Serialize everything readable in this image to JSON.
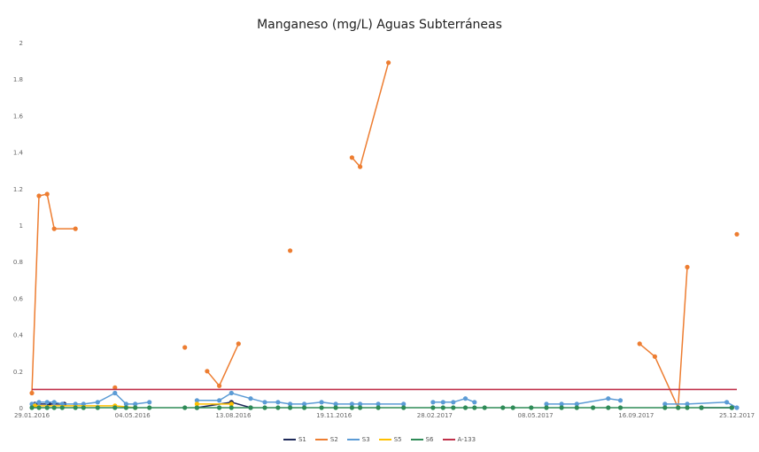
{
  "chart_data": {
    "type": "line",
    "title": "Manganeso (mg/L) Aguas Subterráneas",
    "ylim": [
      0,
      2
    ],
    "yticks": [
      "0",
      "0.2",
      "0.4",
      "0.6",
      "0.8",
      "1",
      "1.2",
      "1.4",
      "1.6",
      "1.8",
      "2"
    ],
    "xlim": [
      "2016-01-29",
      "2017-12-25"
    ],
    "xtick_labels": [
      "29.01.2016",
      "04.05.2016",
      "13.08.2016",
      "19.11.2016",
      "28.02.2017",
      "08.05.2017",
      "16.09.2017",
      "25.12.2017"
    ],
    "grid": false,
    "legend_position": "bottom",
    "series": [
      {
        "name": "S1",
        "color": "#1f2a5a",
        "segments": [
          [
            [
              "2016-02-01",
              0.02
            ],
            [
              "2016-02-15",
              0.02
            ],
            [
              "2016-03-01",
              0.02
            ]
          ],
          [
            [
              "2016-07-10",
              0.0
            ],
            [
              "2016-08-13",
              0.03
            ],
            [
              "2016-09-01",
              0.0
            ]
          ],
          [
            [
              "2017-11-20",
              0.0
            ],
            [
              "2017-12-20",
              0.0
            ]
          ]
        ]
      },
      {
        "name": "S2",
        "color": "#ed7d31",
        "segments": [
          [
            [
              "2016-01-29",
              0.08
            ],
            [
              "2016-02-05",
              1.16
            ],
            [
              "2016-02-13",
              1.17
            ],
            [
              "2016-02-20",
              0.98
            ],
            [
              "2016-03-12",
              0.98
            ]
          ],
          [
            [
              "2016-04-20",
              0.11
            ]
          ],
          [
            [
              "2016-06-28",
              0.33
            ]
          ],
          [
            [
              "2016-07-20",
              0.2
            ],
            [
              "2016-08-01",
              0.12
            ],
            [
              "2016-08-20",
              0.35
            ]
          ],
          [
            [
              "2016-10-10",
              0.86
            ]
          ],
          [
            [
              "2016-12-10",
              1.37
            ],
            [
              "2016-12-18",
              1.32
            ],
            [
              "2017-01-15",
              1.89
            ]
          ],
          [
            [
              "2017-09-20",
              0.35
            ],
            [
              "2017-10-05",
              0.28
            ],
            [
              "2017-10-28",
              0.0
            ],
            [
              "2017-11-06",
              0.77
            ]
          ],
          [
            [
              "2017-12-25",
              0.95
            ]
          ]
        ]
      },
      {
        "name": "S3",
        "color": "#5b9bd5",
        "segments": [
          [
            [
              "2016-01-29",
              0.02
            ],
            [
              "2016-02-05",
              0.03
            ],
            [
              "2016-02-13",
              0.03
            ],
            [
              "2016-02-20",
              0.03
            ],
            [
              "2016-02-28",
              0.02
            ],
            [
              "2016-03-12",
              0.02
            ],
            [
              "2016-03-20",
              0.02
            ],
            [
              "2016-04-03",
              0.03
            ],
            [
              "2016-04-20",
              0.08
            ],
            [
              "2016-05-01",
              0.02
            ],
            [
              "2016-05-10",
              0.02
            ],
            [
              "2016-05-24",
              0.03
            ]
          ],
          [
            [
              "2016-07-10",
              0.04
            ],
            [
              "2016-08-01",
              0.04
            ],
            [
              "2016-08-13",
              0.08
            ],
            [
              "2016-09-01",
              0.05
            ],
            [
              "2016-09-15",
              0.03
            ],
            [
              "2016-09-28",
              0.03
            ],
            [
              "2016-10-10",
              0.02
            ],
            [
              "2016-10-24",
              0.02
            ],
            [
              "2016-11-10",
              0.03
            ],
            [
              "2016-11-24",
              0.02
            ],
            [
              "2016-12-10",
              0.02
            ],
            [
              "2016-12-18",
              0.02
            ],
            [
              "2017-01-05",
              0.02
            ],
            [
              "2017-01-30",
              0.02
            ]
          ],
          [
            [
              "2017-02-28",
              0.03
            ],
            [
              "2017-03-10",
              0.03
            ],
            [
              "2017-03-20",
              0.03
            ],
            [
              "2017-04-01",
              0.05
            ],
            [
              "2017-04-10",
              0.03
            ]
          ],
          [
            [
              "2017-06-20",
              0.02
            ],
            [
              "2017-07-05",
              0.02
            ],
            [
              "2017-07-20",
              0.02
            ],
            [
              "2017-08-20",
              0.05
            ],
            [
              "2017-09-01",
              0.04
            ]
          ],
          [
            [
              "2017-10-15",
              0.02
            ],
            [
              "2017-11-06",
              0.02
            ],
            [
              "2017-12-15",
              0.03
            ],
            [
              "2017-12-25",
              0.0
            ]
          ]
        ]
      },
      {
        "name": "S5",
        "color": "#ffc000",
        "segments": [
          [
            [
              "2016-02-01",
              0.01
            ],
            [
              "2016-04-20",
              0.01
            ],
            [
              "2016-05-10",
              0.0
            ]
          ],
          [
            [
              "2016-07-10",
              0.02
            ],
            [
              "2016-08-13",
              0.02
            ]
          ]
        ]
      },
      {
        "name": "S6",
        "color": "#2e8b57",
        "segments": [
          [
            [
              "2016-01-29",
              0.0
            ],
            [
              "2016-02-05",
              0.0
            ],
            [
              "2016-02-13",
              0.0
            ],
            [
              "2016-02-20",
              0.0
            ],
            [
              "2016-02-28",
              0.0
            ],
            [
              "2016-03-12",
              0.0
            ],
            [
              "2016-03-20",
              0.0
            ],
            [
              "2016-04-03",
              0.0
            ],
            [
              "2016-04-20",
              0.0
            ],
            [
              "2016-05-01",
              0.0
            ],
            [
              "2016-05-10",
              0.0
            ],
            [
              "2016-05-24",
              0.0
            ],
            [
              "2016-06-28",
              0.0
            ],
            [
              "2016-07-10",
              0.0
            ],
            [
              "2016-08-01",
              0.0
            ],
            [
              "2016-08-13",
              0.0
            ],
            [
              "2016-09-01",
              0.0
            ],
            [
              "2016-09-15",
              0.0
            ],
            [
              "2016-09-28",
              0.0
            ],
            [
              "2016-10-10",
              0.0
            ],
            [
              "2016-10-24",
              0.0
            ],
            [
              "2016-11-10",
              0.0
            ],
            [
              "2016-11-24",
              0.0
            ],
            [
              "2016-12-10",
              0.0
            ],
            [
              "2016-12-18",
              0.0
            ],
            [
              "2017-01-05",
              0.0
            ],
            [
              "2017-01-30",
              0.0
            ],
            [
              "2017-02-28",
              0.0
            ],
            [
              "2017-03-10",
              0.0
            ],
            [
              "2017-03-20",
              0.0
            ],
            [
              "2017-04-01",
              0.0
            ],
            [
              "2017-04-10",
              0.0
            ],
            [
              "2017-04-20",
              0.0
            ],
            [
              "2017-05-08",
              0.0
            ],
            [
              "2017-05-18",
              0.0
            ],
            [
              "2017-06-05",
              0.0
            ],
            [
              "2017-06-20",
              0.0
            ],
            [
              "2017-07-05",
              0.0
            ],
            [
              "2017-07-20",
              0.0
            ],
            [
              "2017-08-05",
              0.0
            ],
            [
              "2017-08-20",
              0.0
            ],
            [
              "2017-09-01",
              0.0
            ],
            [
              "2017-10-15",
              0.0
            ],
            [
              "2017-10-28",
              0.0
            ],
            [
              "2017-11-06",
              0.0
            ],
            [
              "2017-11-20",
              0.0
            ],
            [
              "2017-12-20",
              0.0
            ]
          ]
        ]
      },
      {
        "name": "A-133",
        "color": "#c0304a",
        "segments": [
          [
            [
              "2016-01-29",
              0.1
            ],
            [
              "2017-12-25",
              0.1
            ]
          ]
        ],
        "markers": false
      }
    ]
  }
}
